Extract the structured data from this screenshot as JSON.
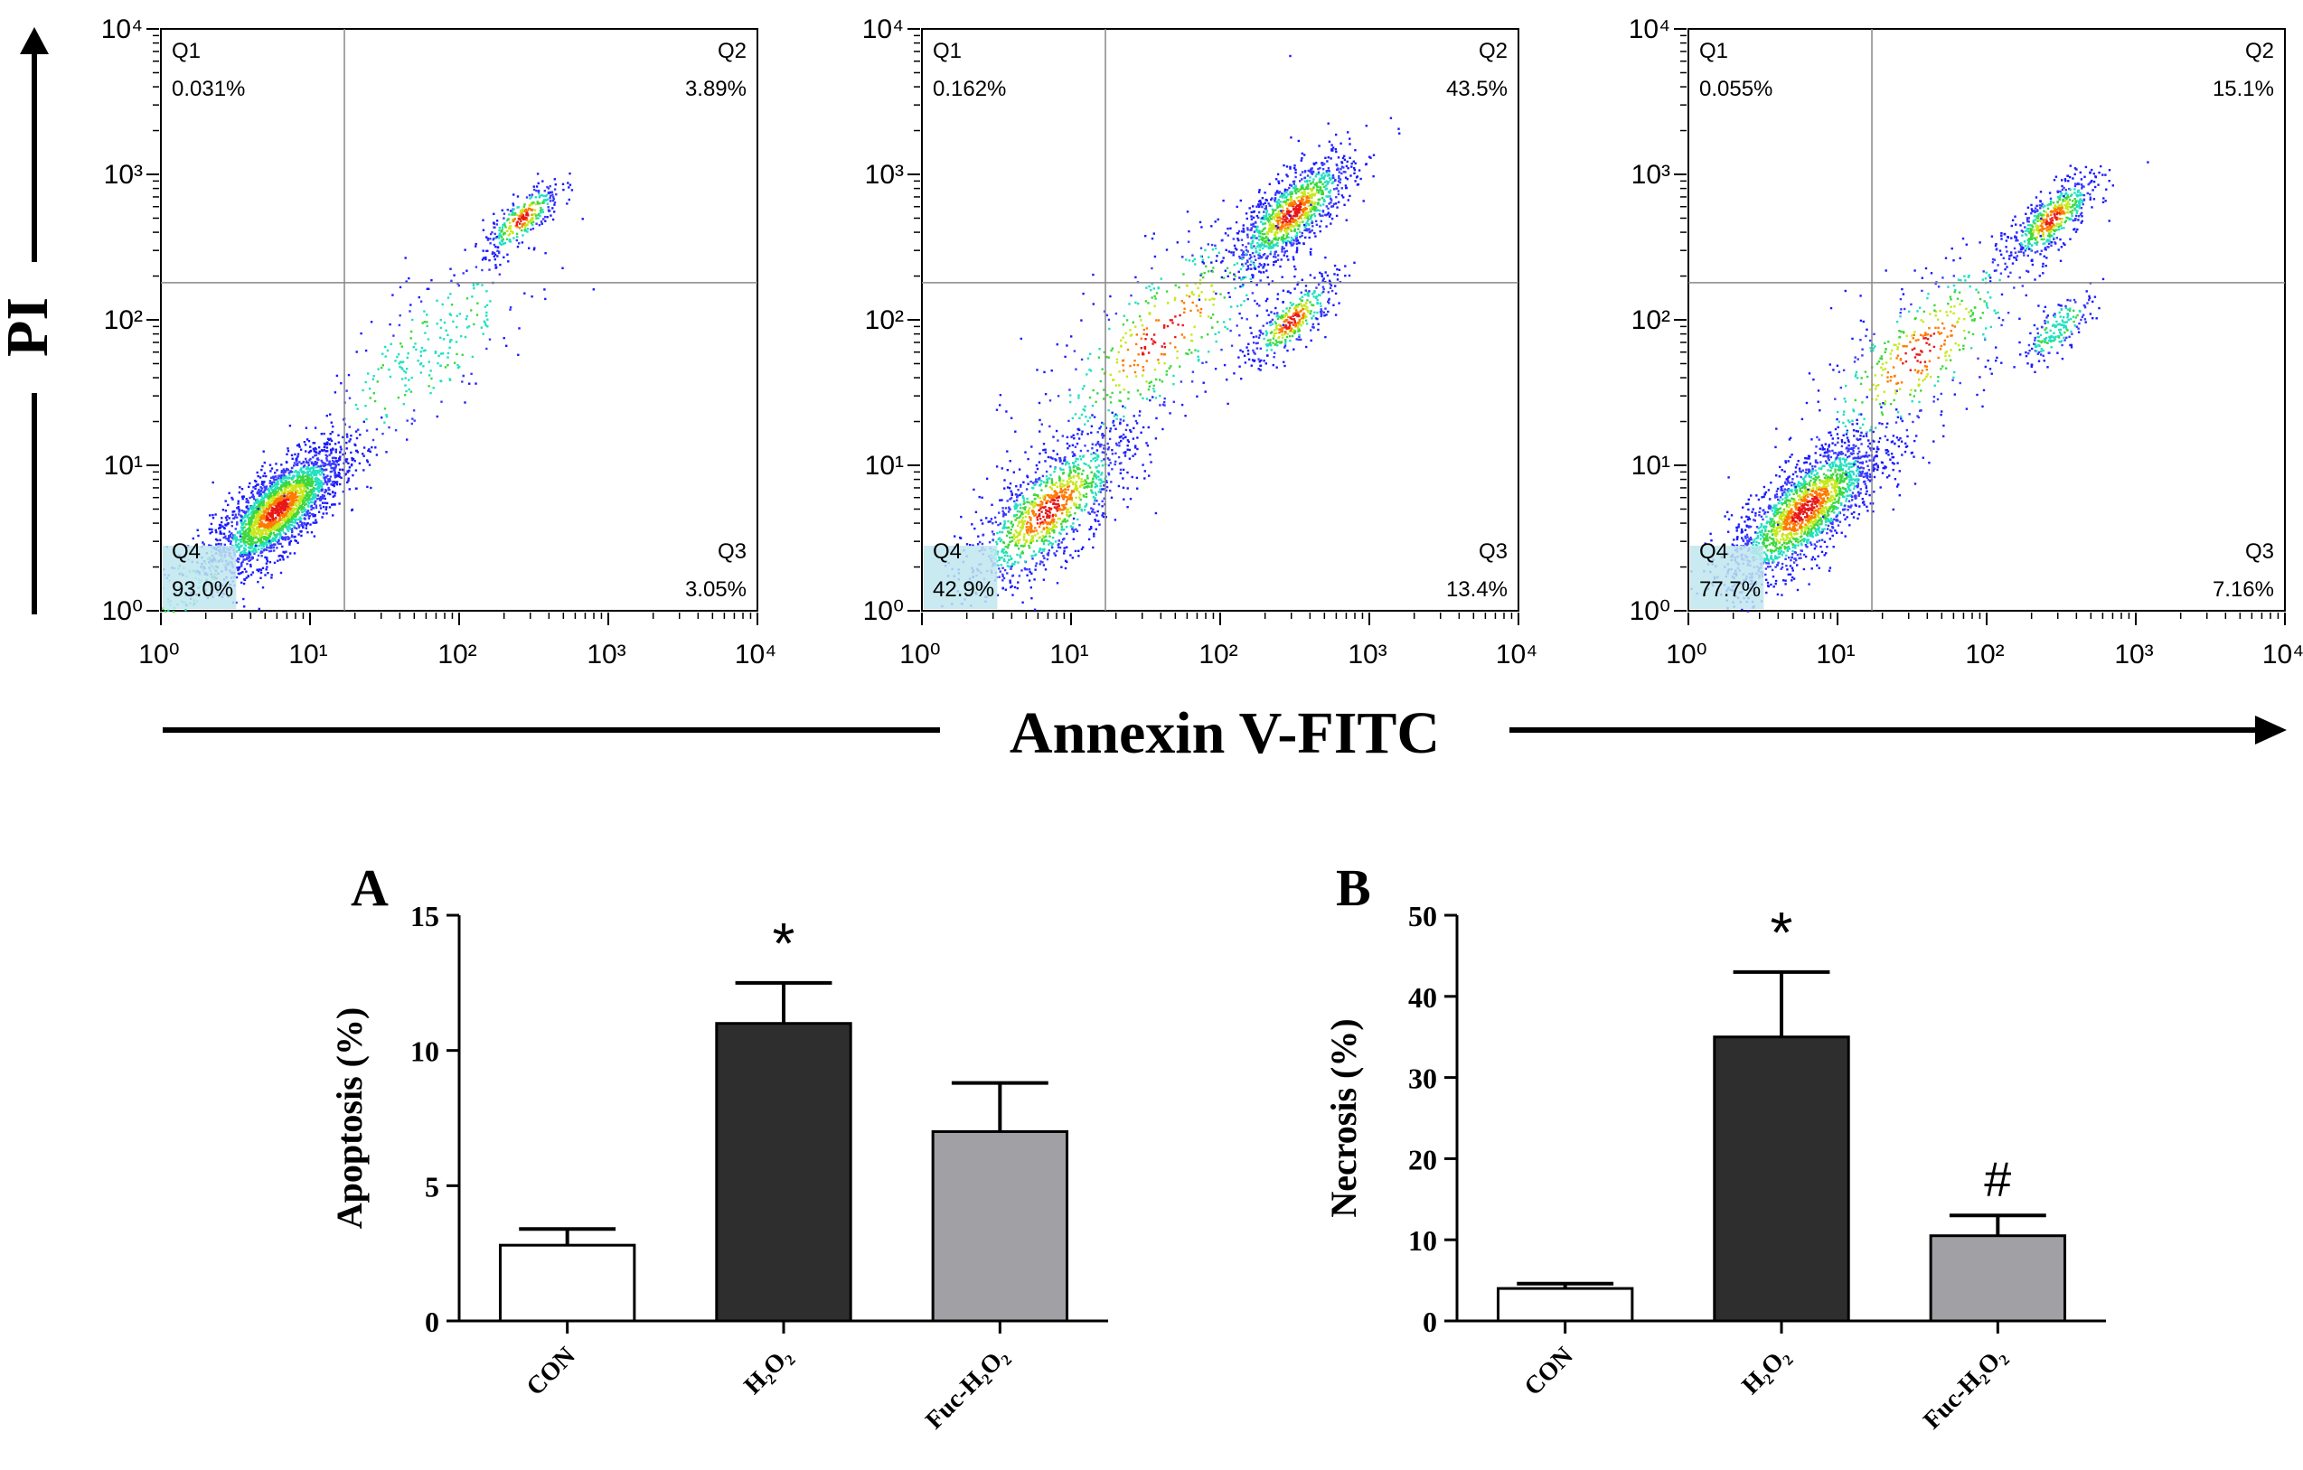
{
  "figure": {
    "y_axis_label": "PI",
    "x_axis_label": "Annexin V-FITC"
  },
  "chart_data": [
    {
      "type": "scatter",
      "x_scale": "log",
      "y_scale": "log",
      "xlim": [
        1,
        10000
      ],
      "ylim": [
        1,
        10000
      ],
      "x_ticks": [
        "10⁰",
        "10¹",
        "10²",
        "10³",
        "10⁴"
      ],
      "y_ticks": [
        "10⁰",
        "10¹",
        "10²",
        "10³",
        "10⁴"
      ],
      "gate": {
        "x": 17,
        "y": 180
      },
      "quadrants": [
        {
          "name": "Q1",
          "value": "0.031%"
        },
        {
          "name": "Q2",
          "value": "3.89%"
        },
        {
          "name": "Q3",
          "value": "3.05%"
        },
        {
          "name": "Q4",
          "value": "93.0%"
        }
      ],
      "populations": [
        {
          "x": 6,
          "y": 5,
          "spread": 0.22,
          "weight": 0.78
        },
        {
          "x": 260,
          "y": 500,
          "spread": 0.13,
          "weight": 0.1
        },
        {
          "x": 60,
          "y": 60,
          "spread": 0.35,
          "weight": 0.08
        },
        {
          "x": 1.5,
          "y": 1.5,
          "spread": 0.2,
          "weight": 0.04
        }
      ]
    },
    {
      "type": "scatter",
      "x_scale": "log",
      "y_scale": "log",
      "xlim": [
        1,
        10000
      ],
      "ylim": [
        1,
        10000
      ],
      "x_ticks": [
        "10⁰",
        "10¹",
        "10²",
        "10³",
        "10⁴"
      ],
      "y_ticks": [
        "10⁰",
        "10¹",
        "10²",
        "10³",
        "10⁴"
      ],
      "gate": {
        "x": 17,
        "y": 180
      },
      "quadrants": [
        {
          "name": "Q1",
          "value": "0.162%"
        },
        {
          "name": "Q2",
          "value": "43.5%"
        },
        {
          "name": "Q3",
          "value": "13.4%"
        },
        {
          "name": "Q4",
          "value": "42.9%"
        }
      ],
      "populations": [
        {
          "x": 7,
          "y": 5,
          "spread": 0.28,
          "weight": 0.38
        },
        {
          "x": 300,
          "y": 550,
          "spread": 0.2,
          "weight": 0.34
        },
        {
          "x": 300,
          "y": 100,
          "spread": 0.15,
          "weight": 0.12
        },
        {
          "x": 40,
          "y": 80,
          "spread": 0.45,
          "weight": 0.16
        }
      ]
    },
    {
      "type": "scatter",
      "x_scale": "log",
      "y_scale": "log",
      "xlim": [
        1,
        10000
      ],
      "ylim": [
        1,
        10000
      ],
      "x_ticks": [
        "10⁰",
        "10¹",
        "10²",
        "10³",
        "10⁴"
      ],
      "y_ticks": [
        "10⁰",
        "10¹",
        "10²",
        "10³",
        "10⁴"
      ],
      "gate": {
        "x": 17,
        "y": 180
      },
      "quadrants": [
        {
          "name": "Q1",
          "value": "0.055%"
        },
        {
          "name": "Q2",
          "value": "15.1%"
        },
        {
          "name": "Q3",
          "value": "7.16%"
        },
        {
          "name": "Q4",
          "value": "77.7%"
        }
      ],
      "populations": [
        {
          "x": 6,
          "y": 5,
          "spread": 0.26,
          "weight": 0.62
        },
        {
          "x": 270,
          "y": 500,
          "spread": 0.15,
          "weight": 0.17
        },
        {
          "x": 300,
          "y": 90,
          "spread": 0.12,
          "weight": 0.06
        },
        {
          "x": 35,
          "y": 60,
          "spread": 0.4,
          "weight": 0.15
        }
      ]
    },
    {
      "type": "bar",
      "panel_label": "A",
      "ylabel": "Apoptosis (%)",
      "categories": [
        "CON",
        "H₂O₂",
        "Fuc-H₂O₂"
      ],
      "values": [
        2.8,
        11.0,
        7.0
      ],
      "errors": [
        0.6,
        1.5,
        1.8
      ],
      "bar_colors": [
        "#ffffff",
        "#2e2e2e",
        "#a0a0a5"
      ],
      "annotations": [
        "",
        "*",
        ""
      ],
      "ylim": [
        0,
        15
      ],
      "yticks": [
        0,
        5,
        10,
        15
      ]
    },
    {
      "type": "bar",
      "panel_label": "B",
      "ylabel": "Necrosis (%)",
      "categories": [
        "CON",
        "H₂O₂",
        "Fuc-H₂O₂"
      ],
      "values": [
        4.0,
        35.0,
        10.5
      ],
      "errors": [
        0.6,
        8.0,
        2.5
      ],
      "bar_colors": [
        "#ffffff",
        "#2e2e2e",
        "#a0a0a5"
      ],
      "annotations": [
        "",
        "*",
        "#"
      ],
      "ylim": [
        0,
        50
      ],
      "yticks": [
        0,
        10,
        20,
        30,
        40,
        50
      ]
    }
  ]
}
